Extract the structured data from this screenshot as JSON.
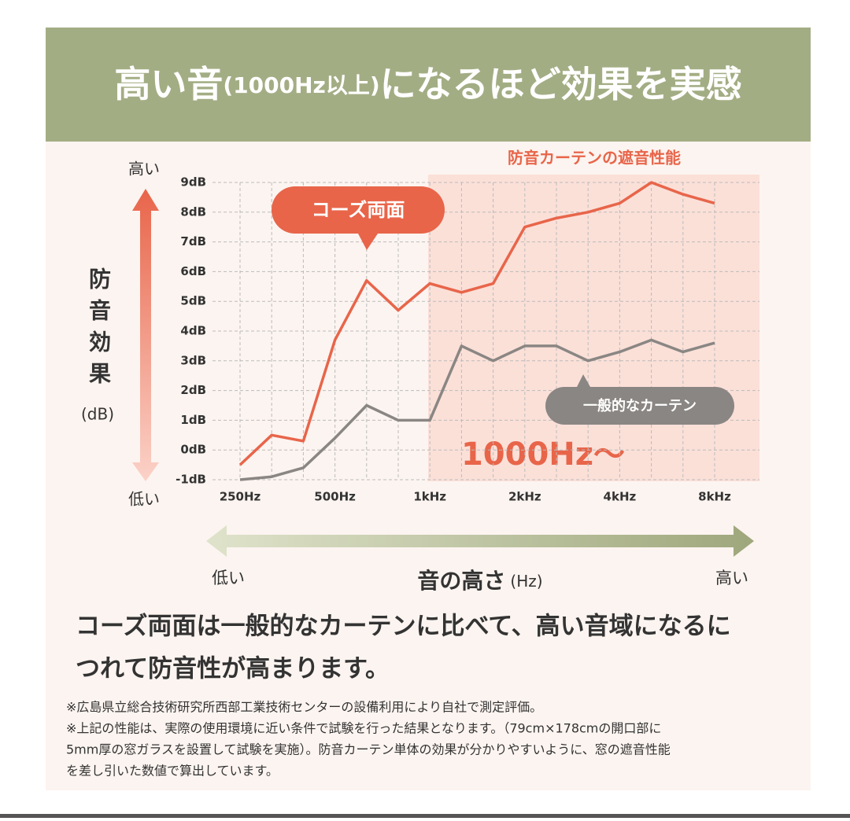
{
  "header": {
    "title_start": "高い音",
    "title_paren": "(1000Hz以上)",
    "title_end": "になるほど効果を実感"
  },
  "chart_data": {
    "type": "line",
    "highlight_label": "防音カーテンの遮音性能",
    "highlight_text": "1000Hz〜",
    "y_axis": {
      "label": "防音効果",
      "unit": "(dB)",
      "high": "高い",
      "low": "低い"
    },
    "x_axis": {
      "label": "音の高さ",
      "unit": "(Hz)",
      "low": "低い",
      "high": "高い"
    },
    "categories": [
      "250Hz",
      null,
      null,
      "500Hz",
      null,
      null,
      "1kHz",
      null,
      null,
      "2kHz",
      null,
      null,
      "4kHz",
      null,
      null,
      "8kHz"
    ],
    "series": [
      {
        "name": "コーズ両面",
        "color": "#e8654a",
        "values": [
          -0.5,
          0.5,
          0.3,
          3.7,
          5.7,
          4.7,
          5.6,
          5.3,
          5.6,
          7.5,
          7.8,
          8.0,
          8.3,
          9.0,
          8.6,
          8.3
        ]
      },
      {
        "name": "一般的なカーテン",
        "color": "#8a8683",
        "values": [
          -1.0,
          -0.9,
          -0.6,
          0.4,
          1.5,
          1.0,
          1.0,
          3.5,
          3.0,
          3.5,
          3.5,
          3.0,
          3.3,
          3.7,
          3.3,
          3.6
        ]
      }
    ],
    "ylim": [
      -1,
      9
    ],
    "yticks": [
      {
        "value": -1,
        "label": "-1dB"
      },
      {
        "value": 0,
        "label": "0dB"
      },
      {
        "value": 1,
        "label": "1dB"
      },
      {
        "value": 2,
        "label": "2dB"
      },
      {
        "value": 3,
        "label": "3dB"
      },
      {
        "value": 4,
        "label": "4dB"
      },
      {
        "value": 5,
        "label": "5dB"
      },
      {
        "value": 6,
        "label": "6dB"
      },
      {
        "value": 7,
        "label": "7dB"
      },
      {
        "value": 8,
        "label": "8dB"
      },
      {
        "value": 9,
        "label": "9dB"
      }
    ],
    "grid": true
  },
  "description": [
    "コーズ両面は一般的なカーテンに比べて、高い音域になるに",
    "つれて防音性が高まります。"
  ],
  "notes": [
    "※広島県立総合技術研究所西部工業技術センターの設備利用により自社で測定評価。",
    "※上記の性能は、実際の使用環境に近い条件で試験を行った結果となります。（79cm×178cmの開口部に",
    "5mm厚の窓ガラスを設置して試験を実施）。防音カーテン単体の効果が分かりやすいように、窓の遮音性能",
    "を差し引いた数値で算出しています。"
  ]
}
